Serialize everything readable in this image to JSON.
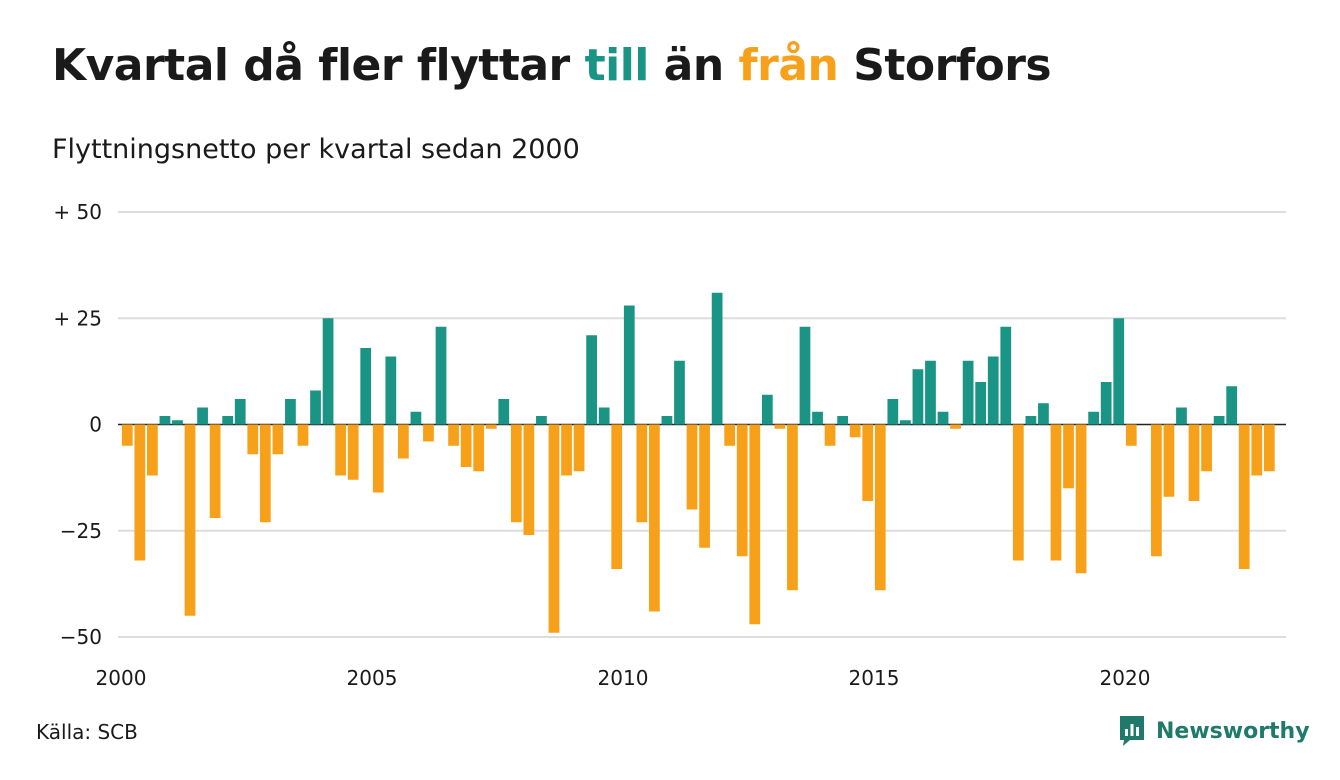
{
  "header": {
    "title_part1": "Kvartal då fler flyttar ",
    "title_in": "till",
    "title_part2": " än ",
    "title_out": "från",
    "title_part3": " Storfors",
    "subtitle": "Flyttningsnetto per kvartal sedan 2000"
  },
  "footer": {
    "source": "Källa: SCB",
    "brand": "Newsworthy"
  },
  "colors": {
    "positive": "#1a9484",
    "negative": "#f7a11a",
    "grid": "#dddddd",
    "text": "#1a1a1a",
    "brand": "#1f7a6c"
  },
  "icons": {
    "brand_logo": "newsworthy-logo-icon"
  },
  "chart_data": {
    "type": "bar",
    "title": "Kvartal då fler flyttar till än från Storfors",
    "subtitle": "Flyttningsnetto per kvartal sedan 2000",
    "ylim": [
      -50,
      50
    ],
    "yticks": [
      {
        "value": 50,
        "label": "+ 50"
      },
      {
        "value": 25,
        "label": "+ 25"
      },
      {
        "value": 0,
        "label": "0"
      },
      {
        "value": -25,
        "label": "−25"
      },
      {
        "value": -50,
        "label": "−50"
      }
    ],
    "xtick_labels": [
      "2000",
      "2005",
      "2010",
      "2015",
      "2020"
    ],
    "grid": true,
    "start_year": 2000,
    "values": [
      -5,
      -32,
      -12,
      2,
      1,
      -45,
      4,
      -22,
      2,
      6,
      -7,
      -23,
      -7,
      6,
      -5,
      8,
      25,
      -12,
      -13,
      18,
      -16,
      16,
      -8,
      3,
      -4,
      23,
      -5,
      -10,
      -11,
      -1,
      6,
      -23,
      -26,
      2,
      -49,
      -12,
      -11,
      21,
      4,
      -34,
      28,
      -23,
      -44,
      2,
      15,
      -20,
      -29,
      31,
      -5,
      -31,
      -47,
      7,
      -1,
      -39,
      23,
      3,
      -5,
      2,
      -3,
      -18,
      -39,
      6,
      1,
      13,
      15,
      3,
      -1,
      15,
      10,
      16,
      23,
      -32,
      2,
      5,
      -32,
      -15,
      -35,
      3,
      10,
      25,
      -5,
      0,
      -31,
      -17,
      4,
      -18,
      -11,
      2,
      9,
      -34,
      -12,
      -11
    ]
  }
}
